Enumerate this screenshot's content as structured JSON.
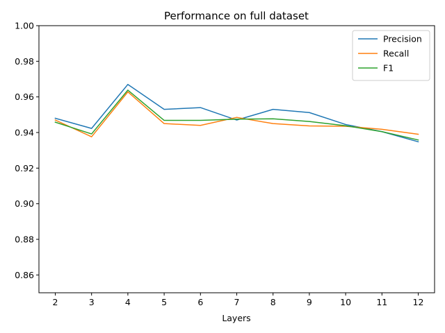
{
  "chart_data": {
    "type": "line",
    "title": "Performance on full dataset",
    "xlabel": "Layers",
    "ylabel": "",
    "x": [
      2,
      3,
      4,
      5,
      6,
      7,
      8,
      9,
      10,
      11,
      12
    ],
    "xticks": [
      "2",
      "3",
      "4",
      "5",
      "6",
      "7",
      "8",
      "9",
      "10",
      "11",
      "12"
    ],
    "xlim": [
      1.55,
      12.45
    ],
    "ylim": [
      0.85,
      1.0
    ],
    "yticks": [
      "0.86",
      "0.88",
      "0.90",
      "0.92",
      "0.94",
      "0.96",
      "0.98",
      "1.00"
    ],
    "ytick_values": [
      0.86,
      0.88,
      0.9,
      0.92,
      0.94,
      0.96,
      0.98,
      1.0
    ],
    "grid": false,
    "legend_position": "top-right",
    "series": [
      {
        "name": "Precision",
        "color": "#1f77b4",
        "values": [
          0.948,
          0.9423,
          0.967,
          0.953,
          0.954,
          0.947,
          0.953,
          0.9512,
          0.9445,
          0.9405,
          0.9348
        ]
      },
      {
        "name": "Recall",
        "color": "#ff7f0e",
        "values": [
          0.947,
          0.9376,
          0.9628,
          0.945,
          0.944,
          0.9485,
          0.945,
          0.9437,
          0.9435,
          0.9418,
          0.939
        ]
      },
      {
        "name": "F1",
        "color": "#2ca02c",
        "values": [
          0.9458,
          0.9392,
          0.9638,
          0.9468,
          0.9468,
          0.9475,
          0.9477,
          0.9462,
          0.9438,
          0.9405,
          0.9358
        ]
      }
    ]
  }
}
